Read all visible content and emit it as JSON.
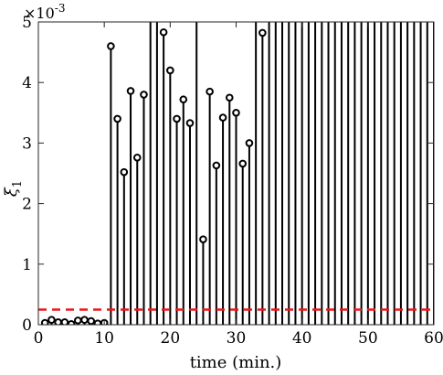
{
  "chart_data": {
    "type": "stem",
    "xlabel": "time (min.)",
    "ylabel": "ξ",
    "ylabel_subscript": "1",
    "xlim": [
      0,
      60
    ],
    "ylim": [
      0,
      0.005
    ],
    "y_scale_factor_label": "×10",
    "y_scale_factor_exponent": "-3",
    "x_ticks": [
      0,
      10,
      20,
      30,
      40,
      50,
      60
    ],
    "y_ticks": [
      0,
      1,
      2,
      3,
      4,
      5
    ],
    "threshold": {
      "y": 0.00025,
      "color": "#e8191c",
      "style": "dashed"
    },
    "stems": [
      {
        "x": 1,
        "y": 3e-05
      },
      {
        "x": 2,
        "y": 8e-05
      },
      {
        "x": 3,
        "y": 4e-05
      },
      {
        "x": 4,
        "y": 4e-05
      },
      {
        "x": 5,
        "y": 1e-05
      },
      {
        "x": 6,
        "y": 7e-05
      },
      {
        "x": 7,
        "y": 8e-05
      },
      {
        "x": 8,
        "y": 6e-05
      },
      {
        "x": 9,
        "y": 2e-05
      },
      {
        "x": 10,
        "y": 3e-05
      },
      {
        "x": 11,
        "y": 0.0046
      },
      {
        "x": 12,
        "y": 0.0034
      },
      {
        "x": 13,
        "y": 0.00252
      },
      {
        "x": 14,
        "y": 0.00386
      },
      {
        "x": 15,
        "y": 0.00276
      },
      {
        "x": 16,
        "y": 0.0038
      },
      {
        "x": 17,
        "y": 0.0062
      },
      {
        "x": 18,
        "y": 0.0062
      },
      {
        "x": 19,
        "y": 0.00483
      },
      {
        "x": 20,
        "y": 0.0042
      },
      {
        "x": 21,
        "y": 0.0034
      },
      {
        "x": 22,
        "y": 0.00372
      },
      {
        "x": 23,
        "y": 0.00333
      },
      {
        "x": 24,
        "y": 0.0062
      },
      {
        "x": 25,
        "y": 0.00141
      },
      {
        "x": 26,
        "y": 0.00385
      },
      {
        "x": 27,
        "y": 0.00263
      },
      {
        "x": 28,
        "y": 0.00342
      },
      {
        "x": 29,
        "y": 0.00375
      },
      {
        "x": 30,
        "y": 0.0035
      },
      {
        "x": 31,
        "y": 0.00266
      },
      {
        "x": 32,
        "y": 0.003
      },
      {
        "x": 33,
        "y": 0.0062
      },
      {
        "x": 34,
        "y": 0.00482
      },
      {
        "x": 35,
        "y": 0.0062
      },
      {
        "x": 36,
        "y": 0.0062
      },
      {
        "x": 37,
        "y": 0.0062
      },
      {
        "x": 38,
        "y": 0.0062
      },
      {
        "x": 39,
        "y": 0.0062
      },
      {
        "x": 40,
        "y": 0.0062
      },
      {
        "x": 41,
        "y": 0.0062
      },
      {
        "x": 42,
        "y": 0.0062
      },
      {
        "x": 43,
        "y": 0.0062
      },
      {
        "x": 44,
        "y": 0.0062
      },
      {
        "x": 45,
        "y": 0.0062
      },
      {
        "x": 46,
        "y": 0.0062
      },
      {
        "x": 47,
        "y": 0.0062
      },
      {
        "x": 48,
        "y": 0.0062
      },
      {
        "x": 49,
        "y": 0.0062
      },
      {
        "x": 50,
        "y": 0.0062
      },
      {
        "x": 51,
        "y": 0.0062
      },
      {
        "x": 52,
        "y": 0.0062
      },
      {
        "x": 53,
        "y": 0.0062
      },
      {
        "x": 54,
        "y": 0.0062
      },
      {
        "x": 55,
        "y": 0.0062
      },
      {
        "x": 56,
        "y": 0.0062
      },
      {
        "x": 57,
        "y": 0.0062
      },
      {
        "x": 58,
        "y": 0.0062
      },
      {
        "x": 59,
        "y": 0.0062
      },
      {
        "x": 60,
        "y": 0.0062
      }
    ],
    "colors": {
      "stem": "#000000",
      "axes": "#262626"
    }
  }
}
